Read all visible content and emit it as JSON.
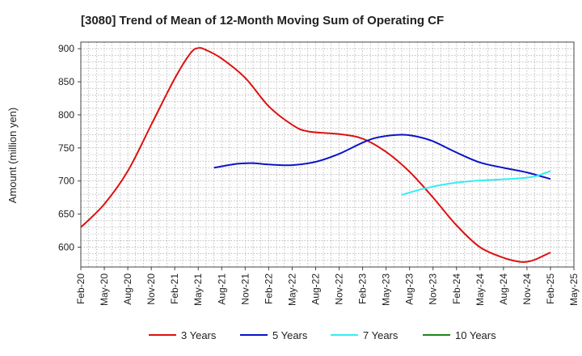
{
  "chart_data": {
    "type": "line",
    "title": "[3080]  Trend of Mean of 12-Month Moving Sum of Operating CF",
    "xlabel": "",
    "ylabel": "Amount (million yen)",
    "ylim": [
      570,
      910
    ],
    "yticks": [
      600,
      650,
      700,
      750,
      800,
      850,
      900
    ],
    "xlim": [
      "Feb-20",
      "May-25"
    ],
    "x_tick_labels": [
      "Feb-20",
      "May-20",
      "Aug-20",
      "Nov-20",
      "Feb-21",
      "May-21",
      "Aug-21",
      "Nov-21",
      "Feb-22",
      "May-22",
      "Aug-22",
      "Nov-22",
      "Feb-23",
      "May-23",
      "Aug-23",
      "Nov-23",
      "Feb-24",
      "May-24",
      "Aug-24",
      "Nov-24",
      "Feb-25",
      "May-25"
    ],
    "grid": true,
    "legend_position": "bottom",
    "series": [
      {
        "name": "3 Years",
        "color": "#dd1111",
        "points": [
          [
            "Feb-20",
            630
          ],
          [
            "May-20",
            665
          ],
          [
            "Aug-20",
            715
          ],
          [
            "Nov-20",
            785
          ],
          [
            "Feb-21",
            855
          ],
          [
            "Apr-21",
            893
          ],
          [
            "May-21",
            901
          ],
          [
            "Jun-21",
            898
          ],
          [
            "Aug-21",
            885
          ],
          [
            "Nov-21",
            856
          ],
          [
            "Feb-22",
            813
          ],
          [
            "May-22",
            785
          ],
          [
            "Jul-22",
            775
          ],
          [
            "Nov-22",
            771
          ],
          [
            "Feb-23",
            764
          ],
          [
            "May-23",
            744
          ],
          [
            "Aug-23",
            714
          ],
          [
            "Nov-23",
            675
          ],
          [
            "Feb-24",
            633
          ],
          [
            "May-24",
            600
          ],
          [
            "Aug-24",
            584
          ],
          [
            "Oct-24",
            578
          ],
          [
            "Nov-24",
            578
          ],
          [
            "Dec-24",
            581
          ],
          [
            "Feb-25",
            592
          ]
        ]
      },
      {
        "name": "5 Years",
        "color": "#0a14c8",
        "points": [
          [
            "Jul-21",
            720
          ],
          [
            "Oct-21",
            726
          ],
          [
            "Dec-21",
            727
          ],
          [
            "Feb-22",
            725
          ],
          [
            "May-22",
            724
          ],
          [
            "Aug-22",
            729
          ],
          [
            "Nov-22",
            741
          ],
          [
            "Feb-23",
            758
          ],
          [
            "Apr-23",
            766
          ],
          [
            "Jul-23",
            770
          ],
          [
            "Sep-23",
            767
          ],
          [
            "Nov-23",
            760
          ],
          [
            "Feb-24",
            743
          ],
          [
            "May-24",
            728
          ],
          [
            "Aug-24",
            720
          ],
          [
            "Nov-24",
            713
          ],
          [
            "Feb-25",
            703
          ]
        ]
      },
      {
        "name": "7 Years",
        "color": "#33eef0",
        "points": [
          [
            "Jul-23",
            679
          ],
          [
            "Oct-23",
            689
          ],
          [
            "Jan-24",
            696
          ],
          [
            "Apr-24",
            700
          ],
          [
            "Jul-24",
            702
          ],
          [
            "Oct-24",
            704
          ],
          [
            "Dec-24",
            707
          ],
          [
            "Feb-25",
            715
          ]
        ]
      },
      {
        "name": "10 Years",
        "color": "#1a8a1a",
        "points": []
      }
    ]
  }
}
